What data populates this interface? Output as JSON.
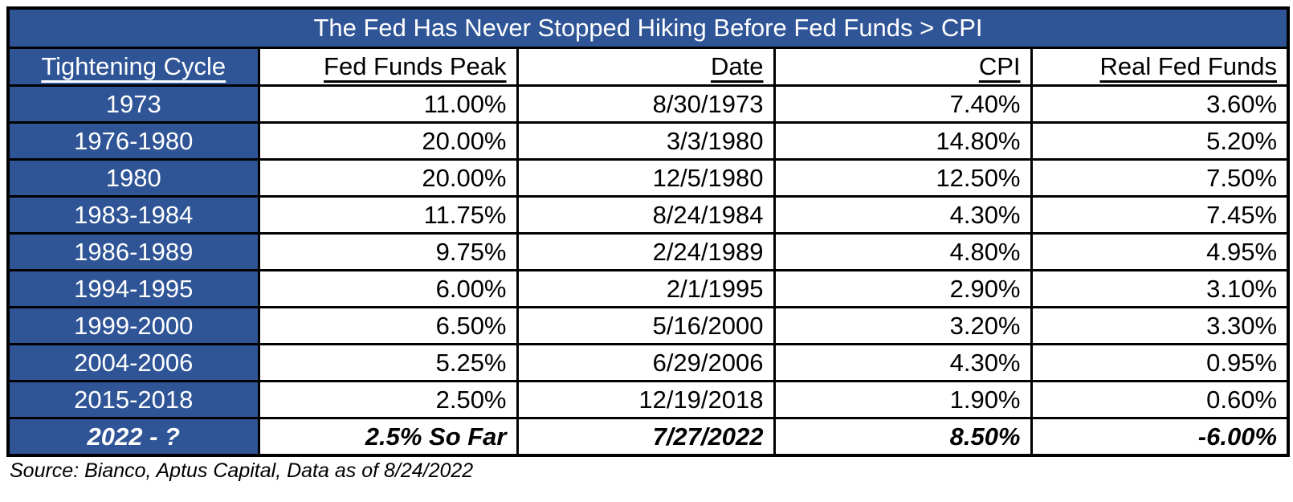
{
  "colors": {
    "header_blue": "#2F5597",
    "border_black": "#000000",
    "light_text": "#FFFFFF",
    "dark_text": "#000000",
    "background": "#FFFFFF"
  },
  "source_note": "Source: Bianco, Aptus Capital, Data as of 8/24/2022",
  "chart_data": {
    "type": "table",
    "title": "The Fed Has Never Stopped Hiking Before Fed Funds > CPI",
    "columns": [
      "Tightening Cycle",
      "Fed Funds Peak",
      "Date",
      "CPI",
      "Real Fed Funds"
    ],
    "rows": [
      [
        "1973",
        "11.00%",
        "8/30/1973",
        "7.40%",
        "3.60%"
      ],
      [
        "1976-1980",
        "20.00%",
        "3/3/1980",
        "14.80%",
        "5.20%"
      ],
      [
        "1980",
        "20.00%",
        "12/5/1980",
        "12.50%",
        "7.50%"
      ],
      [
        "1983-1984",
        "11.75%",
        "8/24/1984",
        "4.30%",
        "7.45%"
      ],
      [
        "1986-1989",
        "9.75%",
        "2/24/1989",
        "4.80%",
        "4.95%"
      ],
      [
        "1994-1995",
        "6.00%",
        "2/1/1995",
        "2.90%",
        "3.10%"
      ],
      [
        "1999-2000",
        "6.50%",
        "5/16/2000",
        "3.20%",
        "3.30%"
      ],
      [
        "2004-2006",
        "5.25%",
        "6/29/2006",
        "4.30%",
        "0.95%"
      ],
      [
        "2015-2018",
        "2.50%",
        "12/19/2018",
        "1.90%",
        "0.60%"
      ],
      [
        "2022 - ?",
        "2.5% So Far",
        "7/27/2022",
        "8.50%",
        "-6.00%"
      ]
    ],
    "emphasized_row_index": 9,
    "source": "Source: Bianco, Aptus Capital, Data as of 8/24/2022",
    "layout_hints": {
      "first_column_style": "white-on-blue, centered",
      "other_columns_style": "black-on-white, right-aligned",
      "header_underline": true,
      "grid": "black solid borders"
    }
  }
}
